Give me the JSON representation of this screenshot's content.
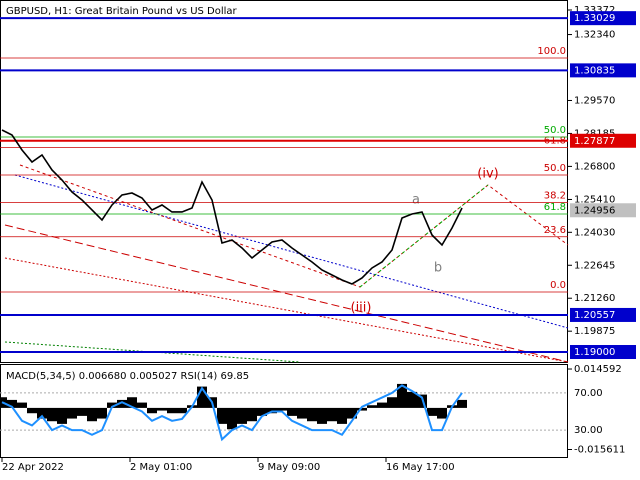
{
  "chart_data": {
    "type": "line",
    "title": "GBPUSD, H1:  Great Britain Pound vs US Dollar",
    "ylim": [
      1.1858,
      1.33792
    ],
    "yticks": [
      1.33372,
      {
        "value": 1.3234,
        "label": "1.32340"
      },
      {
        "value": 1.2957,
        "label": "1.29570"
      },
      1.28185,
      {
        "value": 1.268,
        "label": "1.26800"
      },
      {
        "value": 1.2541,
        "label": "1.25410"
      },
      {
        "value": 1.2403,
        "label": "1.24030"
      },
      1.22645,
      {
        "value": 1.2126,
        "label": "1.21260"
      },
      1.19875
    ],
    "levels": [
      {
        "value": 1.33029,
        "label": "1.33029",
        "color": "#0000cc"
      },
      {
        "value": 1.30835,
        "label": "1.30835",
        "color": "#0000cc"
      },
      {
        "value": 1.27877,
        "label": "1.27877",
        "color": "#dd0000"
      },
      {
        "value": 1.20557,
        "label": "1.20557",
        "color": "#0000cc"
      },
      {
        "value": 1.19,
        "label": "1.19000",
        "color": "#0000cc"
      }
    ],
    "current_price": {
      "value": 1.24956,
      "label": "1.24956"
    },
    "fib_red": [
      {
        "value": 1.31355,
        "label": "100.0"
      },
      {
        "value": 1.27599,
        "label": "61.8"
      },
      {
        "value": 1.26438,
        "label": "50.0"
      },
      {
        "value": 1.25278,
        "label": "38.2"
      },
      {
        "value": 1.23843,
        "label": "23.6"
      },
      {
        "value": 1.21522,
        "label": "0.0"
      }
    ],
    "fib_green": [
      {
        "value": 1.28035,
        "label": "50.0"
      },
      {
        "value": 1.248,
        "label": "61.8"
      }
    ],
    "series": [
      {
        "name": "GBPUSD",
        "color": "#000000",
        "values": [
          1.28329,
          1.28119,
          1.27489,
          1.26985,
          1.27279,
          1.26649,
          1.26228,
          1.25724,
          1.25388,
          1.24968,
          1.24548,
          1.25178,
          1.25598,
          1.25682,
          1.25472,
          1.24968,
          1.25178,
          1.24884,
          1.24884,
          1.25052,
          1.26144,
          1.25388,
          1.23581,
          1.23707,
          1.23371,
          1.22951,
          1.23287,
          1.23623,
          1.23707,
          1.23371,
          1.23077,
          1.22783,
          1.22447,
          1.22237,
          1.22026,
          1.21858,
          1.2211,
          1.22531,
          1.22783,
          1.23287,
          1.24632,
          1.248,
          1.24884,
          1.23917,
          1.23497,
          1.24211,
          1.25052
        ]
      }
    ],
    "wave_labels": [
      "(iii)",
      "(iv)",
      "a",
      "b"
    ],
    "time_labels": [
      "22 Apr 2022",
      "2 May 01:00",
      "9 May 09:00",
      "16 May 17:00"
    ],
    "indicator": {
      "label": "MACD(5,34,5) 0.006680 0.005027 RSI(14) 69.85",
      "macd_ylim": [
        -0.0188,
        0.0161
      ],
      "macd_ticks": [
        0.014592,
        -0.015611
      ],
      "rsi_ylim": [
        0,
        100
      ],
      "rsi_ticks": [
        {
          "value": 70,
          "label": "70.00"
        },
        {
          "value": 30,
          "label": "30.00"
        }
      ],
      "macd": {
        "color": "#000000",
        "values": [
          0.004,
          0.003,
          0.002,
          -0.002,
          -0.004,
          -0.005,
          -0.006,
          -0.004,
          -0.003,
          -0.005,
          -0.004,
          0.002,
          0.003,
          0.004,
          0.002,
          -0.002,
          -0.001,
          -0.002,
          -0.002,
          0.001,
          0.008,
          0.004,
          -0.006,
          -0.008,
          -0.006,
          -0.005,
          -0.003,
          -0.002,
          -0.001,
          -0.003,
          -0.004,
          -0.005,
          -0.006,
          -0.005,
          -0.006,
          -0.004,
          -0.001,
          0.001,
          0.002,
          0.004,
          0.009,
          0.006,
          0.005,
          -0.003,
          -0.004,
          0.001,
          0.003
        ]
      },
      "rsi": {
        "color": "#1e90ff",
        "values": [
          60,
          55,
          40,
          35,
          45,
          30,
          35,
          30,
          30,
          25,
          30,
          55,
          60,
          55,
          50,
          40,
          45,
          40,
          42,
          55,
          75,
          60,
          20,
          30,
          35,
          30,
          45,
          50,
          50,
          40,
          35,
          30,
          30,
          30,
          25,
          40,
          55,
          60,
          65,
          70,
          78,
          72,
          65,
          30,
          30,
          55,
          70
        ]
      }
    }
  }
}
